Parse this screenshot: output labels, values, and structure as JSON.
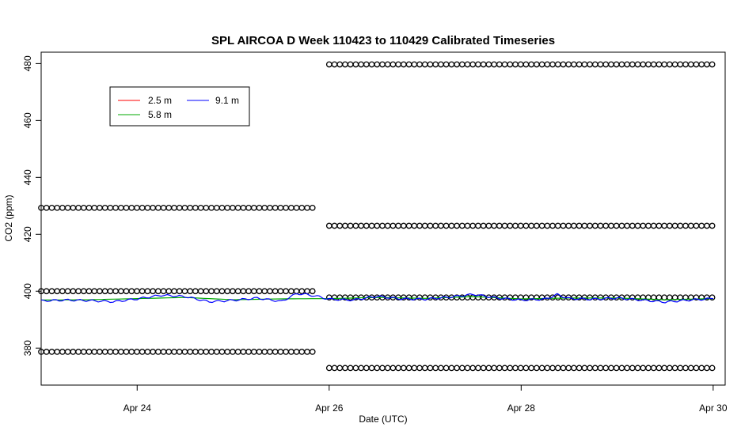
{
  "chart_data": {
    "type": "line",
    "title": "SPL AIRCOA D  Week 110423 to 110429  Calibrated Timeseries",
    "xlabel": "Date (UTC)",
    "ylabel": "CO2 (ppm)",
    "xlim": [
      "2011-04-23T00:00",
      "2011-04-30T03:00"
    ],
    "ylim": [
      367,
      484
    ],
    "x_ticks": [
      {
        "date": "2011-04-24",
        "label": "Apr 24"
      },
      {
        "date": "2011-04-26",
        "label": "Apr 26"
      },
      {
        "date": "2011-04-28",
        "label": "Apr 28"
      },
      {
        "date": "2011-04-30",
        "label": "Apr 30"
      }
    ],
    "y_ticks": [
      380,
      400,
      420,
      440,
      460,
      480
    ],
    "legend": {
      "placement": "top-left",
      "entries": [
        {
          "name": "2.5 m",
          "color": "#ff0000"
        },
        {
          "name": "5.8 m",
          "color": "#00aa00"
        },
        {
          "name": "9.1 m",
          "color": "#0000ff"
        }
      ]
    },
    "series": [
      {
        "name": "9.1 m",
        "color": "#0000ff",
        "points": [
          [
            "2011-04-23T00:00",
            396.6
          ],
          [
            "2011-04-23T06:00",
            396.9
          ],
          [
            "2011-04-23T12:00",
            396.7
          ],
          [
            "2011-04-23T18:00",
            396.3
          ],
          [
            "2011-04-24T00:00",
            397.3
          ],
          [
            "2011-04-24T06:00",
            398.6
          ],
          [
            "2011-04-24T12:00",
            398.1
          ],
          [
            "2011-04-24T18:00",
            396.3
          ],
          [
            "2011-04-25T00:00",
            396.8
          ],
          [
            "2011-04-25T06:00",
            397.6
          ],
          [
            "2011-04-25T12:00",
            396.4
          ],
          [
            "2011-04-25T16:00",
            399.2
          ],
          [
            "2011-04-25T20:00",
            398.5
          ],
          [
            "2011-04-26T00:00",
            397.2
          ],
          [
            "2011-04-26T06:00",
            396.9
          ],
          [
            "2011-04-26T12:00",
            398.2
          ],
          [
            "2011-04-26T18:00",
            397.3
          ],
          [
            "2011-04-27T00:00",
            397.2
          ],
          [
            "2011-04-27T06:00",
            397.9
          ],
          [
            "2011-04-27T12:00",
            398.9
          ],
          [
            "2011-04-27T18:00",
            397.6
          ],
          [
            "2011-04-28T00:00",
            396.9
          ],
          [
            "2011-04-28T06:00",
            397.2
          ],
          [
            "2011-04-28T09:00",
            398.8
          ],
          [
            "2011-04-28T12:00",
            397.4
          ],
          [
            "2011-04-28T18:00",
            397.2
          ],
          [
            "2011-04-29T00:00",
            397.6
          ],
          [
            "2011-04-29T06:00",
            396.9
          ],
          [
            "2011-04-29T12:00",
            396.2
          ],
          [
            "2011-04-29T18:00",
            396.9
          ],
          [
            "2011-04-30T00:00",
            397.4
          ]
        ]
      },
      {
        "name": "5.8 m",
        "color": "#00aa00",
        "points": [
          [
            "2011-04-23T00:00",
            396.9
          ],
          [
            "2011-04-23T12:00",
            397.0
          ],
          [
            "2011-04-24T00:00",
            397.4
          ],
          [
            "2011-04-24T12:00",
            397.8
          ],
          [
            "2011-04-25T00:00",
            397.0
          ],
          [
            "2011-04-25T12:00",
            397.3
          ],
          [
            "2011-04-26T00:00",
            397.4
          ],
          [
            "2011-04-26T12:00",
            397.8
          ],
          [
            "2011-04-27T00:00",
            397.5
          ],
          [
            "2011-04-27T12:00",
            398.1
          ],
          [
            "2011-04-28T00:00",
            397.3
          ],
          [
            "2011-04-28T12:00",
            397.6
          ],
          [
            "2011-04-29T00:00",
            397.6
          ],
          [
            "2011-04-29T12:00",
            397.0
          ],
          [
            "2011-04-30T00:00",
            397.4
          ]
        ]
      }
    ],
    "calibration_bands": [
      {
        "start": "2011-04-23T00:00",
        "end": "2011-04-25T20:00",
        "interval_hours": 1.33,
        "levels": [
          429.3,
          400.0,
          378.7
        ]
      },
      {
        "start": "2011-04-26T00:00",
        "end": "2011-04-30T00:00",
        "interval_hours": 1.33,
        "levels": [
          479.7,
          423.0,
          397.8,
          373.0
        ]
      }
    ]
  }
}
